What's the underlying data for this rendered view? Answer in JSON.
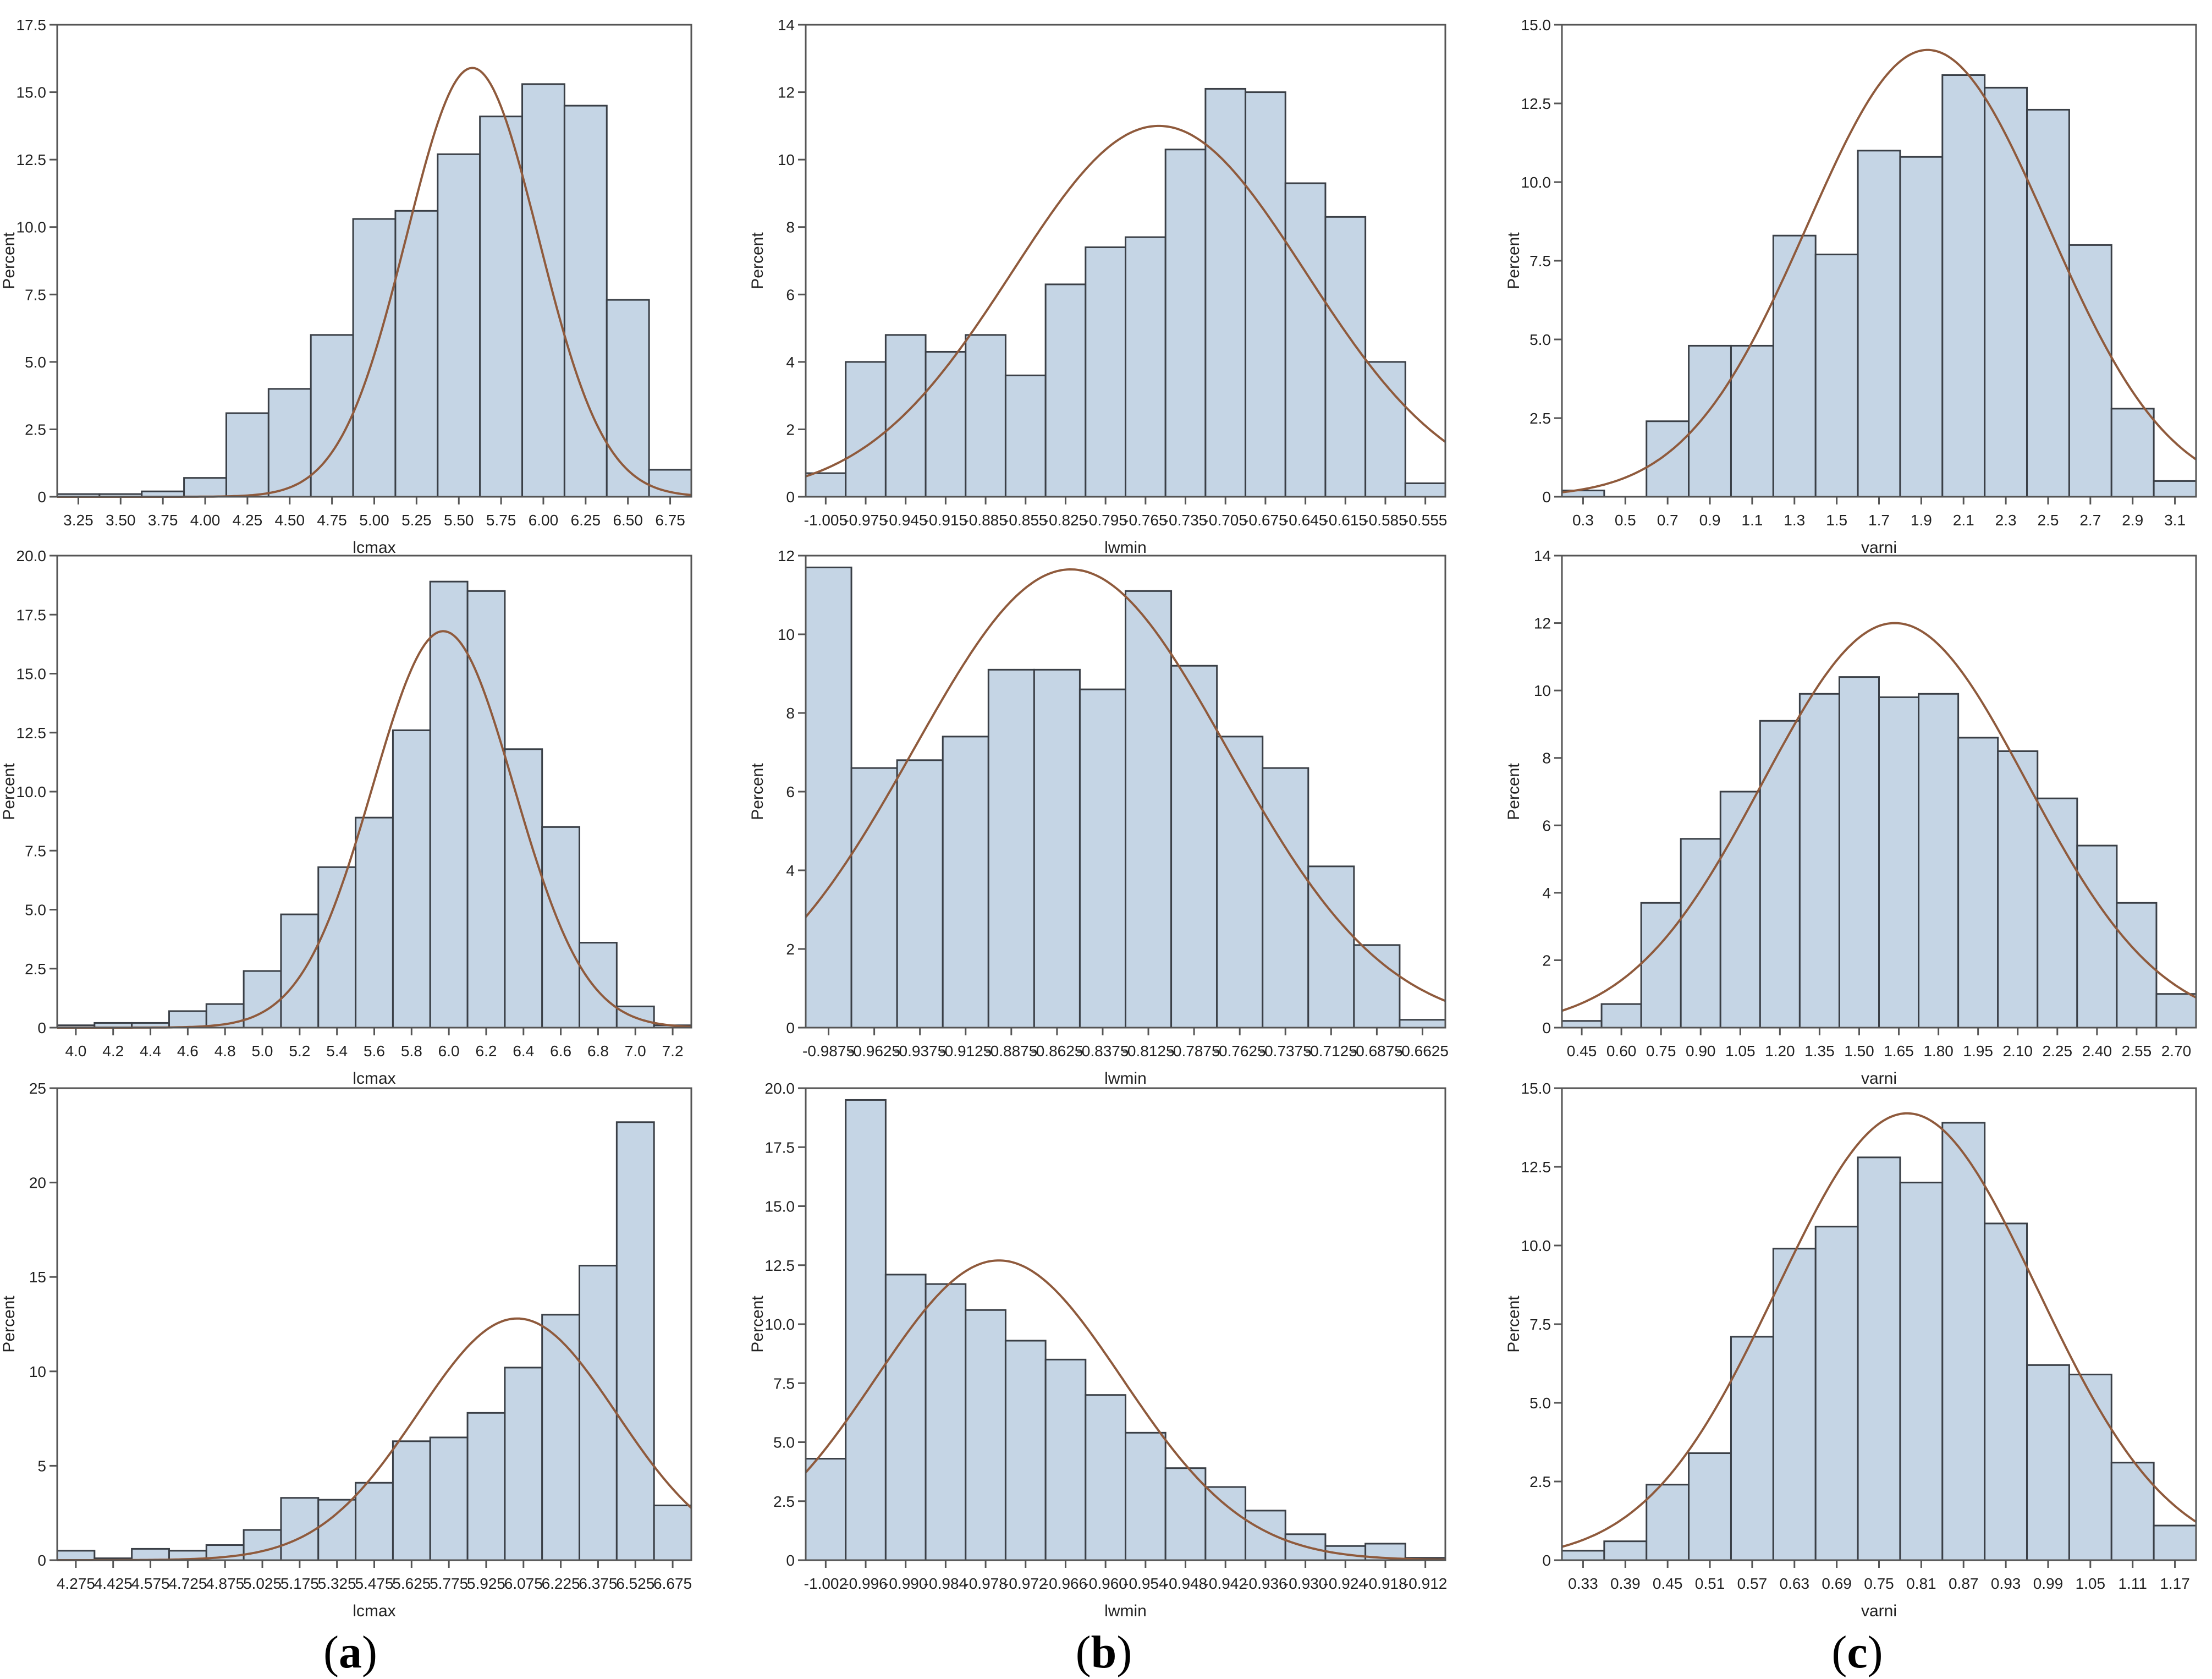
{
  "figure": {
    "captions": [
      {
        "open": "(",
        "letter": "a",
        "close": ")"
      },
      {
        "open": "(",
        "letter": "b",
        "close": ")"
      },
      {
        "open": "(",
        "letter": "c",
        "close": ")"
      }
    ]
  },
  "colors": {
    "bar_fill": "#c5d5e5",
    "bar_stroke": "#3a3f46",
    "curve": "#8f5a3c",
    "axis": "#555555",
    "text": "#222222"
  },
  "chart_data": [
    {
      "type": "bar",
      "xlabel": "lcmax",
      "ylabel": "Percent",
      "xlim": [
        3.125,
        6.875
      ],
      "ylim": [
        0,
        17.5
      ],
      "yticks": [
        0,
        2.5,
        5.0,
        7.5,
        10.0,
        12.5,
        15.0,
        17.5
      ],
      "ytick_labels": [
        "0",
        "2.5",
        "5.0",
        "7.5",
        "10.0",
        "12.5",
        "15.0",
        "17.5"
      ],
      "xtick_labels": [
        "3.25",
        "3.50",
        "3.75",
        "4.00",
        "4.25",
        "4.50",
        "4.75",
        "5.00",
        "5.25",
        "5.50",
        "5.75",
        "6.00",
        "6.25",
        "6.50",
        "6.75"
      ],
      "bin_width": 0.25,
      "x": [
        3.25,
        3.5,
        3.75,
        4.0,
        4.25,
        4.5,
        4.75,
        5.0,
        5.25,
        5.5,
        5.75,
        6.0,
        6.25,
        6.5,
        6.75
      ],
      "values": [
        0.1,
        0.1,
        0.2,
        0.7,
        3.1,
        4.0,
        6.0,
        10.3,
        10.6,
        12.7,
        14.1,
        15.3,
        14.5,
        7.3,
        1.0
      ],
      "normal_curve": {
        "mean": 5.58,
        "sd": 0.39,
        "peak": 15.9
      }
    },
    {
      "type": "bar",
      "xlabel": "lwmin",
      "ylabel": "Percent",
      "xlim": [
        -1.02,
        -0.54
      ],
      "ylim": [
        0,
        14
      ],
      "yticks": [
        0,
        2,
        4,
        6,
        8,
        10,
        12,
        14
      ],
      "ytick_labels": [
        "0",
        "2",
        "4",
        "6",
        "8",
        "10",
        "12",
        "14"
      ],
      "xtick_labels": [
        "-1.005",
        "-0.975",
        "-0.945",
        "-0.915",
        "-0.885",
        "-0.855",
        "-0.825",
        "-0.795",
        "-0.765",
        "-0.735",
        "-0.705",
        "-0.675",
        "-0.645",
        "-0.615",
        "-0.585",
        "-0.555"
      ],
      "bin_width": 0.03,
      "x": [
        -1.005,
        -0.975,
        -0.945,
        -0.915,
        -0.885,
        -0.855,
        -0.825,
        -0.795,
        -0.765,
        -0.735,
        -0.705,
        -0.675,
        -0.645,
        -0.615,
        -0.585,
        -0.555
      ],
      "values": [
        0.7,
        4.0,
        4.8,
        4.3,
        4.8,
        3.6,
        6.3,
        7.4,
        7.7,
        10.3,
        12.1,
        12.0,
        9.3,
        8.3,
        4.0,
        0.4
      ],
      "normal_curve": {
        "mean": -0.755,
        "sd": 0.11,
        "peak": 11.0
      }
    },
    {
      "type": "bar",
      "xlabel": "varni",
      "ylabel": "Percent",
      "xlim": [
        0.2,
        3.2
      ],
      "ylim": [
        0,
        15.0
      ],
      "yticks": [
        0,
        2.5,
        5.0,
        7.5,
        10.0,
        12.5,
        15.0
      ],
      "ytick_labels": [
        "0",
        "2.5",
        "5.0",
        "7.5",
        "10.0",
        "12.5",
        "15.0"
      ],
      "xtick_labels": [
        "0.3",
        "0.5",
        "0.7",
        "0.9",
        "1.1",
        "1.3",
        "1.5",
        "1.7",
        "1.9",
        "2.1",
        "2.3",
        "2.5",
        "2.7",
        "2.9",
        "3.1"
      ],
      "bin_width": 0.2,
      "x": [
        0.3,
        0.5,
        0.7,
        0.9,
        1.1,
        1.3,
        1.5,
        1.7,
        1.9,
        2.1,
        2.3,
        2.5,
        2.7,
        2.9,
        3.1
      ],
      "values": [
        0.2,
        0.0,
        2.4,
        4.8,
        4.8,
        8.3,
        7.7,
        11.0,
        10.8,
        13.4,
        13.0,
        12.3,
        8.0,
        2.8,
        0.5
      ],
      "normal_curve": {
        "mean": 1.93,
        "sd": 0.57,
        "peak": 14.2
      }
    },
    {
      "type": "bar",
      "xlabel": "lcmax",
      "ylabel": "Percent",
      "xlim": [
        3.9,
        7.3
      ],
      "ylim": [
        0,
        20.0
      ],
      "yticks": [
        0,
        2.5,
        5.0,
        7.5,
        10.0,
        12.5,
        15.0,
        17.5,
        20.0
      ],
      "ytick_labels": [
        "0",
        "2.5",
        "5.0",
        "7.5",
        "10.0",
        "12.5",
        "15.0",
        "17.5",
        "20.0"
      ],
      "xtick_labels": [
        "4.0",
        "4.2",
        "4.4",
        "4.6",
        "4.8",
        "5.0",
        "5.2",
        "5.4",
        "5.6",
        "5.8",
        "6.0",
        "6.2",
        "6.4",
        "6.6",
        "6.8",
        "7.0",
        "7.2"
      ],
      "bin_width": 0.2,
      "x": [
        4.0,
        4.2,
        4.4,
        4.6,
        4.8,
        5.0,
        5.2,
        5.4,
        5.6,
        5.8,
        6.0,
        6.2,
        6.4,
        6.6,
        6.8,
        7.0,
        7.2
      ],
      "values": [
        0.1,
        0.2,
        0.2,
        0.7,
        1.0,
        2.4,
        4.8,
        6.8,
        8.9,
        12.6,
        18.9,
        18.5,
        11.8,
        8.5,
        3.6,
        0.9,
        0.1
      ],
      "normal_curve": {
        "mean": 5.97,
        "sd": 0.38,
        "peak": 16.8
      }
    },
    {
      "type": "bar",
      "xlabel": "lwmin",
      "ylabel": "Percent",
      "xlim": [
        -1.0,
        -0.65
      ],
      "ylim": [
        0,
        12
      ],
      "yticks": [
        0,
        2,
        4,
        6,
        8,
        10,
        12
      ],
      "ytick_labels": [
        "0",
        "2",
        "4",
        "6",
        "8",
        "10",
        "12"
      ],
      "xtick_labels": [
        "-0.9875",
        "-0.9625",
        "-0.9375",
        "-0.9125",
        "-0.8875",
        "-0.8625",
        "-0.8375",
        "-0.8125",
        "-0.7875",
        "-0.7625",
        "-0.7375",
        "-0.7125",
        "-0.6875",
        "-0.6625"
      ],
      "bin_width": 0.025,
      "x": [
        -0.9875,
        -0.9625,
        -0.9375,
        -0.9125,
        -0.8875,
        -0.8625,
        -0.8375,
        -0.8125,
        -0.7875,
        -0.7625,
        -0.7375,
        -0.7125,
        -0.6875,
        -0.6625
      ],
      "values": [
        11.7,
        6.6,
        6.8,
        7.4,
        9.1,
        9.1,
        8.6,
        11.1,
        9.2,
        7.4,
        6.6,
        4.1,
        2.1,
        0.2
      ],
      "normal_curve": {
        "mean": -0.855,
        "sd": 0.086,
        "peak": 11.65
      }
    },
    {
      "type": "bar",
      "xlabel": "varni",
      "ylabel": "Percent",
      "xlim": [
        0.375,
        2.775
      ],
      "ylim": [
        0,
        14
      ],
      "yticks": [
        0,
        2,
        4,
        6,
        8,
        10,
        12,
        14
      ],
      "ytick_labels": [
        "0",
        "2",
        "4",
        "6",
        "8",
        "10",
        "12",
        "14"
      ],
      "xtick_labels": [
        "0.45",
        "0.60",
        "0.75",
        "0.90",
        "1.05",
        "1.20",
        "1.35",
        "1.50",
        "1.65",
        "1.80",
        "1.95",
        "2.10",
        "2.25",
        "2.40",
        "2.55",
        "2.70"
      ],
      "bin_width": 0.15,
      "x": [
        0.45,
        0.6,
        0.75,
        0.9,
        1.05,
        1.2,
        1.35,
        1.5,
        1.65,
        1.8,
        1.95,
        2.1,
        2.25,
        2.4,
        2.55,
        2.7
      ],
      "values": [
        0.2,
        0.7,
        3.7,
        5.6,
        7.0,
        9.1,
        9.9,
        10.4,
        9.8,
        9.9,
        8.6,
        8.2,
        6.8,
        5.4,
        3.7,
        1.0
      ],
      "normal_curve": {
        "mean": 1.635,
        "sd": 0.5,
        "peak": 12.0
      }
    },
    {
      "type": "bar",
      "xlabel": "lcmax",
      "ylabel": "Percent",
      "xlim": [
        4.2,
        6.75
      ],
      "ylim": [
        0,
        25
      ],
      "yticks": [
        0,
        5,
        10,
        15,
        20,
        25
      ],
      "ytick_labels": [
        "0",
        "5",
        "10",
        "15",
        "20",
        "25"
      ],
      "xtick_labels": [
        "4.275",
        "4.425",
        "4.575",
        "4.725",
        "4.875",
        "5.025",
        "5.175",
        "5.325",
        "5.475",
        "5.625",
        "5.775",
        "5.925",
        "6.075",
        "6.225",
        "6.375",
        "6.525",
        "6.675"
      ],
      "bin_width": 0.15,
      "x": [
        4.275,
        4.425,
        4.575,
        4.725,
        4.875,
        5.025,
        5.175,
        5.325,
        5.475,
        5.625,
        5.775,
        5.925,
        6.075,
        6.225,
        6.375,
        6.525,
        6.675
      ],
      "values": [
        0.5,
        0.1,
        0.6,
        0.5,
        0.8,
        1.6,
        3.3,
        3.2,
        4.1,
        6.3,
        6.5,
        7.8,
        10.2,
        13.0,
        15.6,
        23.2,
        2.9
      ],
      "normal_curve": {
        "mean": 6.05,
        "sd": 0.4,
        "peak": 12.8
      }
    },
    {
      "type": "bar",
      "xlabel": "lwmin",
      "ylabel": "Percent",
      "xlim": [
        -1.005,
        -0.909
      ],
      "ylim": [
        0,
        20.0
      ],
      "yticks": [
        0,
        2.5,
        5.0,
        7.5,
        10.0,
        12.5,
        15.0,
        17.5,
        20.0
      ],
      "ytick_labels": [
        "0",
        "2.5",
        "5.0",
        "7.5",
        "10.0",
        "12.5",
        "15.0",
        "17.5",
        "20.0"
      ],
      "xtick_labels": [
        "-1.002",
        "-0.996",
        "-0.990",
        "-0.984",
        "-0.978",
        "-0.972",
        "-0.966",
        "-0.960",
        "-0.954",
        "-0.948",
        "-0.942",
        "-0.936",
        "-0.930",
        "-0.924",
        "-0.918",
        "-0.912"
      ],
      "bin_width": 0.006,
      "x": [
        -1.002,
        -0.996,
        -0.99,
        -0.984,
        -0.978,
        -0.972,
        -0.966,
        -0.96,
        -0.954,
        -0.948,
        -0.942,
        -0.936,
        -0.93,
        -0.924,
        -0.918,
        -0.912
      ],
      "values": [
        4.3,
        19.5,
        12.1,
        11.7,
        10.6,
        9.3,
        8.5,
        7.0,
        5.4,
        3.9,
        3.1,
        2.1,
        1.1,
        0.6,
        0.7,
        0.1
      ],
      "normal_curve": {
        "mean": -0.976,
        "sd": 0.0185,
        "peak": 12.7
      }
    },
    {
      "type": "bar",
      "xlabel": "varni",
      "ylabel": "Percent",
      "xlim": [
        0.3,
        1.2
      ],
      "ylim": [
        0,
        15.0
      ],
      "yticks": [
        0,
        2.5,
        5.0,
        7.5,
        10.0,
        12.5,
        15.0
      ],
      "ytick_labels": [
        "0",
        "2.5",
        "5.0",
        "7.5",
        "10.0",
        "12.5",
        "15.0"
      ],
      "xtick_labels": [
        "0.33",
        "0.39",
        "0.45",
        "0.51",
        "0.57",
        "0.63",
        "0.69",
        "0.75",
        "0.81",
        "0.87",
        "0.93",
        "0.99",
        "1.05",
        "1.11",
        "1.17"
      ],
      "bin_width": 0.06,
      "x": [
        0.33,
        0.39,
        0.45,
        0.51,
        0.57,
        0.63,
        0.69,
        0.75,
        0.81,
        0.87,
        0.93,
        0.99,
        1.05,
        1.11,
        1.17
      ],
      "values": [
        0.3,
        0.6,
        2.4,
        3.4,
        7.1,
        9.9,
        10.6,
        12.8,
        12.0,
        13.9,
        10.7,
        6.2,
        5.9,
        3.1,
        1.1
      ],
      "normal_curve": {
        "mean": 0.79,
        "sd": 0.185,
        "peak": 14.2
      }
    }
  ]
}
